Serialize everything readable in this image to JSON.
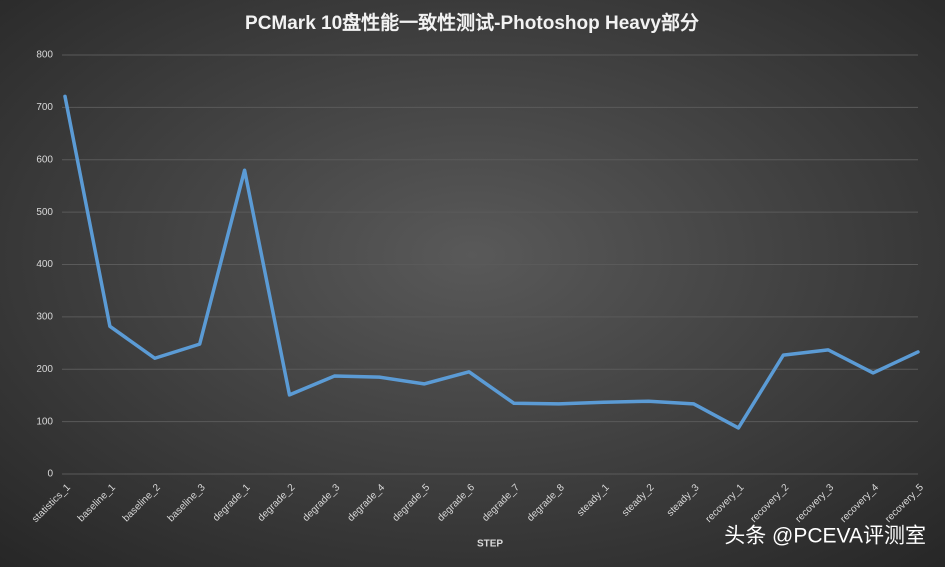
{
  "chart_data": {
    "type": "line",
    "title": "PCMark 10盘性能一致性测试-Photoshop Heavy部分",
    "x_label": "STEP",
    "categories": [
      "statistics_1",
      "baseline_1",
      "baseline_2",
      "baseline_3",
      "degrade_1",
      "degrade_2",
      "degrade_3",
      "degrade_4",
      "degrade_5",
      "degrade_6",
      "degrade_7",
      "degrade_8",
      "steady_1",
      "steady_2",
      "steady_3",
      "recovery_1",
      "recovery_2",
      "recovery_3",
      "recovery_4",
      "recovery_5"
    ],
    "values": [
      721,
      282,
      221,
      248,
      580,
      151,
      187,
      185,
      172,
      195,
      135,
      134,
      137,
      139,
      134,
      88,
      227,
      237,
      193,
      233
    ],
    "color": "#5b9bd5",
    "ylim": [
      0,
      800
    ],
    "yticks": [
      0,
      100,
      200,
      300,
      400,
      500,
      600,
      700,
      800
    ],
    "grid": true,
    "watermark": "头条 @PCEVA评测室"
  }
}
